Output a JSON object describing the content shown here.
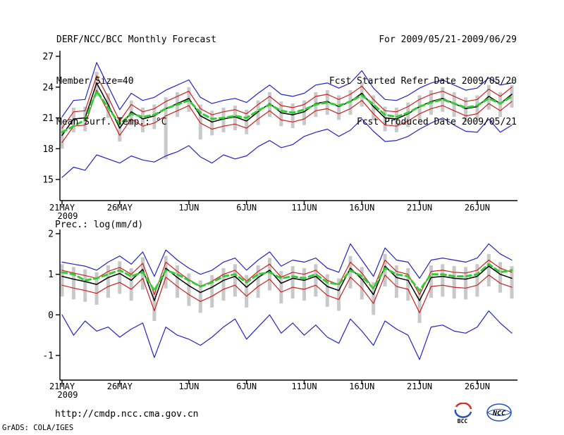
{
  "header": {
    "title": "DERF/NCC/BCC Monthly Forecast",
    "member_size": "Member Size=40",
    "panel1_label": "Mean Surf. Temp.: °C",
    "for_range": "For 2009/05/21-2009/06/29",
    "fcst_started": "Fcst Started Refer Date 2009/05/20",
    "fcst_produced": "Fcst Produced Date 2009/05/21"
  },
  "panel2_label": "Prec.: log(mm/d)",
  "footer": {
    "url": "http://cmdp.ncc.cma.gov.cn",
    "credit": "GrADS: COLA/IGES",
    "bcc_label": "BCC",
    "ncc_label": "NCC"
  },
  "colors": {
    "envelope_line": "#2323c8",
    "std_line": "#cc2020",
    "mean_line": "#000000",
    "climatology_line": "#33cc33",
    "spread_bar": "#c9c9c9",
    "axis": "#000000"
  },
  "chart_data": [
    {
      "type": "line",
      "title": "Mean Surf. Temp.: °C",
      "xlabel": "",
      "ylabel": "°C",
      "ylim": [
        15,
        27
      ],
      "yticks": [
        15,
        18,
        21,
        24,
        27
      ],
      "grid": false,
      "legend": "none",
      "n_days": 40,
      "x_tick_labels": [
        "21MAY",
        "26MAY",
        "1JUN",
        "6JUN",
        "11JUN",
        "16JUN",
        "21JUN",
        "26JUN"
      ],
      "x_tick_days": [
        0,
        5,
        11,
        16,
        21,
        26,
        31,
        36
      ],
      "x_year_label": "2009",
      "series": [
        {
          "name": "ensemble-max",
          "color": "#2323c8",
          "width": 1.2,
          "values": [
            21.1,
            22.7,
            22.8,
            26.4,
            24.1,
            21.8,
            23.4,
            22.7,
            23.0,
            23.7,
            24.2,
            24.7,
            23.0,
            22.4,
            22.7,
            22.9,
            22.5,
            23.4,
            24.2,
            23.3,
            23.1,
            23.4,
            24.2,
            24.4,
            23.9,
            24.4,
            25.6,
            23.9,
            22.8,
            22.7,
            23.2,
            23.9,
            24.4,
            24.7,
            24.2,
            23.7,
            23.9,
            24.9,
            24.2,
            24.4
          ]
        },
        {
          "name": "ensemble-min",
          "color": "#2323c8",
          "width": 1.2,
          "values": [
            15.2,
            16.2,
            15.9,
            17.4,
            17.0,
            16.6,
            17.3,
            16.9,
            16.7,
            17.3,
            17.7,
            18.3,
            17.2,
            16.6,
            17.4,
            17.0,
            17.3,
            18.2,
            18.8,
            18.1,
            18.4,
            19.2,
            19.6,
            19.9,
            19.2,
            19.8,
            20.9,
            19.7,
            18.7,
            18.8,
            19.2,
            19.9,
            20.5,
            21.0,
            20.3,
            19.7,
            19.6,
            20.9,
            19.6,
            20.3
          ]
        },
        {
          "name": "mean-plus-std",
          "color": "#cc2020",
          "width": 1.2,
          "values": [
            20.0,
            21.6,
            21.7,
            25.1,
            23.0,
            20.7,
            22.3,
            21.6,
            21.9,
            22.6,
            23.1,
            23.6,
            21.9,
            21.3,
            21.6,
            21.8,
            21.4,
            22.3,
            23.1,
            22.2,
            22.0,
            22.3,
            23.1,
            23.3,
            22.8,
            23.3,
            24.1,
            22.8,
            21.7,
            21.6,
            22.1,
            22.8,
            23.3,
            23.6,
            23.1,
            22.6,
            22.8,
            23.8,
            23.1,
            24.0
          ]
        },
        {
          "name": "mean-minus-std",
          "color": "#cc2020",
          "width": 1.2,
          "values": [
            18.6,
            20.2,
            20.3,
            23.7,
            21.6,
            19.3,
            20.9,
            20.2,
            20.5,
            21.2,
            21.7,
            22.2,
            20.5,
            19.9,
            20.2,
            20.4,
            20.0,
            20.9,
            21.7,
            20.8,
            20.6,
            20.9,
            21.7,
            21.9,
            21.4,
            21.9,
            22.7,
            21.4,
            20.3,
            20.2,
            20.7,
            21.4,
            21.9,
            22.2,
            21.7,
            21.2,
            21.4,
            22.4,
            21.7,
            22.6
          ]
        },
        {
          "name": "ensemble-mean",
          "color": "#000000",
          "width": 1.5,
          "values": [
            19.3,
            20.9,
            21.0,
            24.4,
            22.3,
            20.0,
            21.6,
            20.9,
            21.2,
            21.9,
            22.4,
            22.9,
            21.2,
            20.6,
            20.9,
            21.1,
            20.7,
            21.6,
            22.4,
            21.5,
            21.3,
            21.6,
            22.4,
            22.6,
            22.1,
            22.6,
            23.4,
            22.1,
            21.0,
            20.9,
            21.4,
            22.1,
            22.6,
            22.9,
            22.4,
            21.9,
            22.1,
            23.1,
            22.4,
            23.3
          ]
        },
        {
          "name": "climatology",
          "color": "#33cc33",
          "width": 3,
          "dash": "7,5",
          "values": [
            19.6,
            20.2,
            20.8,
            23.6,
            22.0,
            20.4,
            21.4,
            21.1,
            21.3,
            21.9,
            22.3,
            22.7,
            21.5,
            20.9,
            21.0,
            21.2,
            21.0,
            21.7,
            22.3,
            21.7,
            21.5,
            21.8,
            22.3,
            22.5,
            22.2,
            22.6,
            23.2,
            22.3,
            21.3,
            21.1,
            21.5,
            22.1,
            22.5,
            22.8,
            22.4,
            22.0,
            22.2,
            22.9,
            22.4,
            23.1
          ]
        }
      ],
      "bars": {
        "name": "member-spread",
        "color": "#c9c9c9",
        "width": 5,
        "high": [
          20.4,
          22.0,
          22.1,
          25.5,
          23.4,
          21.1,
          22.7,
          22.0,
          22.3,
          23.0,
          23.5,
          24.0,
          22.3,
          21.7,
          22.0,
          22.2,
          21.8,
          22.7,
          23.5,
          22.6,
          22.4,
          22.7,
          23.5,
          23.7,
          23.2,
          23.7,
          24.5,
          23.2,
          22.1,
          22.0,
          22.5,
          23.2,
          23.7,
          24.0,
          23.5,
          23.0,
          23.2,
          24.2,
          23.5,
          24.2
        ],
        "low": [
          18.0,
          19.6,
          19.7,
          23.1,
          21.0,
          18.7,
          20.3,
          19.6,
          19.9,
          17.0,
          21.1,
          21.6,
          18.9,
          19.3,
          19.6,
          19.8,
          19.4,
          20.3,
          21.1,
          20.2,
          20.0,
          20.3,
          21.1,
          21.3,
          20.8,
          21.3,
          22.1,
          20.8,
          19.7,
          19.6,
          20.1,
          20.8,
          21.3,
          21.6,
          21.1,
          20.6,
          20.8,
          21.8,
          21.1,
          22.0
        ]
      }
    },
    {
      "type": "line",
      "title": "Prec.: log(mm/d)",
      "xlabel": "",
      "ylabel": "log(mm/d)",
      "ylim": [
        -1,
        2
      ],
      "yticks": [
        -1,
        0,
        1,
        2
      ],
      "grid": false,
      "legend": "none",
      "n_days": 40,
      "x_tick_labels": [
        "21MAY",
        "26MAY",
        "1JUN",
        "6JUN",
        "11JUN",
        "16JUN",
        "21JUN",
        "26JUN"
      ],
      "x_tick_days": [
        0,
        5,
        11,
        16,
        21,
        26,
        31,
        36
      ],
      "x_year_label": "2009",
      "series": [
        {
          "name": "ensemble-max",
          "color": "#2323c8",
          "width": 1.2,
          "values": [
            1.3,
            1.25,
            1.2,
            1.1,
            1.3,
            1.45,
            1.25,
            1.55,
            0.95,
            1.6,
            1.35,
            1.15,
            1.0,
            1.1,
            1.3,
            1.4,
            1.1,
            1.35,
            1.55,
            1.2,
            1.35,
            1.3,
            1.4,
            1.15,
            1.05,
            1.75,
            1.35,
            0.95,
            1.65,
            1.35,
            1.3,
            0.9,
            1.35,
            1.4,
            1.35,
            1.3,
            1.4,
            1.75,
            1.5,
            1.35
          ]
        },
        {
          "name": "ensemble-min",
          "color": "#2323c8",
          "width": 1.2,
          "values": [
            0.0,
            -0.5,
            -0.15,
            -0.4,
            -0.3,
            -0.55,
            -0.35,
            -0.2,
            -1.05,
            -0.3,
            -0.5,
            -0.6,
            -0.75,
            -0.55,
            -0.3,
            -0.1,
            -0.6,
            -0.3,
            0.0,
            -0.45,
            -0.2,
            -0.5,
            -0.25,
            -0.55,
            -0.7,
            -0.1,
            -0.4,
            -0.75,
            -0.15,
            -0.35,
            -0.5,
            -1.1,
            -0.3,
            -0.25,
            -0.4,
            -0.45,
            -0.3,
            0.1,
            -0.2,
            -0.45
          ]
        },
        {
          "name": "mean-plus-std",
          "color": "#cc2020",
          "width": 1.2,
          "values": [
            1.1,
            1.03,
            0.97,
            0.9,
            1.07,
            1.17,
            1.0,
            1.27,
            0.5,
            1.3,
            1.07,
            0.87,
            0.7,
            0.83,
            1.0,
            1.1,
            0.83,
            1.07,
            1.25,
            0.93,
            1.05,
            1.0,
            1.1,
            0.85,
            0.75,
            1.3,
            1.03,
            0.65,
            1.35,
            1.07,
            1.0,
            0.5,
            1.07,
            1.1,
            1.05,
            1.03,
            1.1,
            1.35,
            1.15,
            1.05
          ]
        },
        {
          "name": "mean-minus-std",
          "color": "#cc2020",
          "width": 1.2,
          "values": [
            0.73,
            0.66,
            0.6,
            0.53,
            0.7,
            0.8,
            0.63,
            0.9,
            0.1,
            0.93,
            0.7,
            0.5,
            0.33,
            0.46,
            0.63,
            0.73,
            0.46,
            0.7,
            0.88,
            0.56,
            0.68,
            0.63,
            0.73,
            0.48,
            0.38,
            0.93,
            0.66,
            0.28,
            0.98,
            0.7,
            0.63,
            0.05,
            0.7,
            0.73,
            0.68,
            0.66,
            0.73,
            0.98,
            0.78,
            0.68
          ]
        },
        {
          "name": "ensemble-mean",
          "color": "#000000",
          "width": 1.5,
          "values": [
            0.95,
            0.88,
            0.82,
            0.75,
            0.92,
            1.02,
            0.85,
            1.12,
            0.35,
            1.15,
            0.92,
            0.72,
            0.55,
            0.68,
            0.85,
            0.95,
            0.68,
            0.92,
            1.1,
            0.78,
            0.9,
            0.85,
            0.95,
            0.7,
            0.6,
            1.15,
            0.88,
            0.5,
            1.2,
            0.92,
            0.85,
            0.35,
            0.92,
            0.95,
            0.9,
            0.88,
            0.95,
            1.2,
            1.0,
            0.9
          ]
        },
        {
          "name": "climatology",
          "color": "#33cc33",
          "width": 3,
          "dash": "7,5",
          "values": [
            1.05,
            1.0,
            0.85,
            0.9,
            1.0,
            1.1,
            0.95,
            1.05,
            0.6,
            1.1,
            1.0,
            0.85,
            0.7,
            0.8,
            0.95,
            1.0,
            0.8,
            1.0,
            1.05,
            0.9,
            0.95,
            0.9,
            1.0,
            0.8,
            0.75,
            1.1,
            0.95,
            0.65,
            1.15,
            1.0,
            0.95,
            0.6,
            1.0,
            1.0,
            0.95,
            0.95,
            1.0,
            1.25,
            1.05,
            1.1
          ]
        }
      ],
      "bars": {
        "name": "member-spread",
        "color": "#c9c9c9",
        "width": 5,
        "high": [
          1.25,
          1.18,
          1.12,
          1.05,
          1.22,
          1.32,
          1.15,
          1.42,
          0.65,
          1.45,
          1.22,
          1.02,
          0.85,
          0.98,
          1.15,
          1.25,
          0.98,
          1.22,
          1.4,
          1.08,
          1.2,
          1.15,
          1.25,
          1.0,
          0.9,
          1.45,
          1.18,
          0.8,
          1.5,
          1.22,
          1.15,
          0.65,
          1.22,
          1.25,
          1.2,
          1.18,
          1.25,
          1.5,
          1.3,
          1.2
        ],
        "low": [
          0.45,
          0.38,
          0.32,
          0.25,
          0.42,
          0.52,
          0.35,
          0.62,
          -0.15,
          0.65,
          0.42,
          0.22,
          0.05,
          0.18,
          0.35,
          0.45,
          0.18,
          0.42,
          0.6,
          0.28,
          0.4,
          0.35,
          0.45,
          0.2,
          0.1,
          0.65,
          0.38,
          0.0,
          0.7,
          0.42,
          0.35,
          -0.2,
          0.42,
          0.45,
          0.4,
          0.38,
          0.45,
          0.7,
          0.55,
          0.4
        ]
      }
    }
  ]
}
